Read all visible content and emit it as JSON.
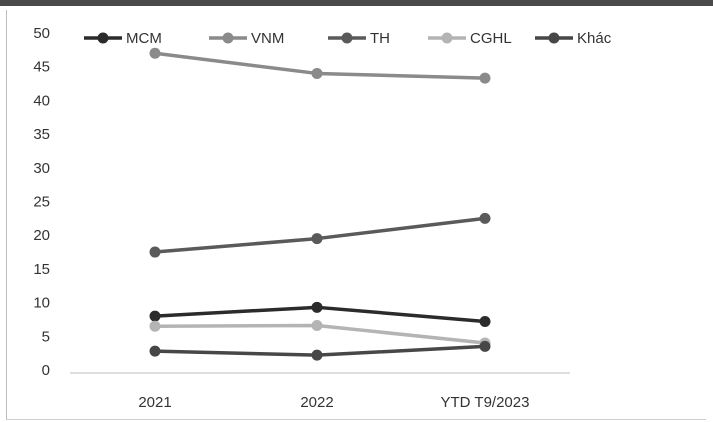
{
  "chart_data": {
    "type": "line",
    "title": "",
    "xlabel": "",
    "ylabel": "",
    "categories": [
      "2021",
      "2022",
      "YTD T9/2023"
    ],
    "ylim": [
      0,
      50
    ],
    "yticks": [
      "0",
      "5",
      "10",
      "15",
      "20",
      "25",
      "30",
      "35",
      "40",
      "45",
      "50"
    ],
    "grid": false,
    "legend_position": "top",
    "series": [
      {
        "name": "MCM",
        "values": [
          8,
          9.3,
          7.2
        ],
        "color": "#2b2b2b"
      },
      {
        "name": "VNM",
        "values": [
          47,
          44,
          43.3
        ],
        "color": "#8a8a8a"
      },
      {
        "name": "TH",
        "values": [
          17.5,
          19.5,
          22.5
        ],
        "color": "#5a5a5a"
      },
      {
        "name": "CGHL",
        "values": [
          6.5,
          6.6,
          4
        ],
        "color": "#b4b4b4"
      },
      {
        "name": "Khác",
        "values": [
          2.8,
          2.2,
          3.5
        ],
        "color": "#474747"
      }
    ]
  }
}
